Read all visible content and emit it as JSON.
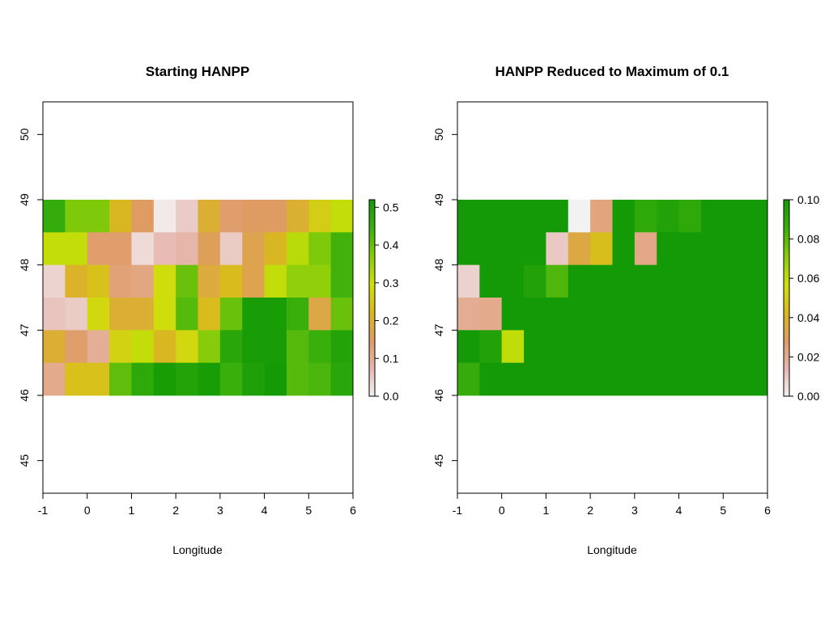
{
  "chart_data": [
    {
      "type": "heatmap",
      "title": "Starting HANPP",
      "xlabel": "Longitude",
      "ylabel": "",
      "xlim": [
        -1,
        6
      ],
      "ylim": [
        44.5,
        50.5
      ],
      "x_ticks": [
        "-1",
        "0",
        "1",
        "2",
        "3",
        "4",
        "5",
        "6"
      ],
      "y_ticks": [
        "45",
        "46",
        "47",
        "48",
        "49",
        "50"
      ],
      "cell_size": 0.5,
      "x_start": -1,
      "y_start": 46,
      "legend": {
        "range": [
          0,
          0.52
        ],
        "ticks": [
          "0.0",
          "0.1",
          "0.2",
          "0.3",
          "0.4",
          "0.5"
        ],
        "colors": [
          "#f2f2f2",
          "#e7b8b1",
          "#df9b63",
          "#d9b81f",
          "#cfe10a",
          "#86cc0a",
          "#3bb00c",
          "#149a06"
        ]
      },
      "grid_rows_top_to_bottom": [
        [
          0.46,
          0.38,
          0.38,
          0.22,
          0.15,
          0.01,
          0.05,
          0.2,
          0.14,
          0.15,
          0.15,
          0.2,
          0.26,
          0.31
        ],
        [
          0.31,
          0.31,
          0.14,
          0.14,
          0.03,
          0.07,
          0.08,
          0.16,
          0.05,
          0.17,
          0.22,
          0.32,
          0.38,
          0.44
        ],
        [
          0.04,
          0.21,
          0.24,
          0.13,
          0.12,
          0.29,
          0.4,
          0.19,
          0.23,
          0.17,
          0.31,
          0.36,
          0.36,
          0.44
        ],
        [
          0.06,
          0.05,
          0.28,
          0.2,
          0.2,
          0.29,
          0.42,
          0.23,
          0.4,
          0.51,
          0.51,
          0.45,
          0.18,
          0.4
        ],
        [
          0.2,
          0.14,
          0.1,
          0.27,
          0.31,
          0.22,
          0.28,
          0.37,
          0.48,
          0.51,
          0.51,
          0.42,
          0.45,
          0.49
        ],
        [
          0.11,
          0.24,
          0.24,
          0.41,
          0.47,
          0.51,
          0.49,
          0.51,
          0.45,
          0.5,
          0.52,
          0.42,
          0.43,
          0.48
        ]
      ]
    },
    {
      "type": "heatmap",
      "title": "HANPP Reduced to Maximum of 0.1",
      "xlabel": "Longitude",
      "ylabel": "",
      "xlim": [
        -1,
        6
      ],
      "ylim": [
        44.5,
        50.5
      ],
      "x_ticks": [
        "-1",
        "0",
        "1",
        "2",
        "3",
        "4",
        "5",
        "6"
      ],
      "y_ticks": [
        "45",
        "46",
        "47",
        "48",
        "49",
        "50"
      ],
      "cell_size": 0.5,
      "x_start": -1,
      "y_start": 46,
      "legend": {
        "range": [
          0,
          0.1
        ],
        "ticks": [
          "0.00",
          "0.02",
          "0.04",
          "0.06",
          "0.08",
          "0.10"
        ],
        "colors": [
          "#f2f2f2",
          "#e7b8b1",
          "#df9b63",
          "#d9b81f",
          "#cfe10a",
          "#86cc0a",
          "#3bb00c",
          "#149a06"
        ]
      },
      "grid_rows_top_to_bottom": [
        [
          0.1,
          0.1,
          0.1,
          0.1,
          0.1,
          0.0,
          0.024,
          0.1,
          0.09,
          0.095,
          0.09,
          0.1,
          0.1,
          0.1
        ],
        [
          0.1,
          0.1,
          0.1,
          0.1,
          0.01,
          0.035,
          0.045,
          0.1,
          0.022,
          0.1,
          0.1,
          0.1,
          0.1,
          0.1
        ],
        [
          0.008,
          0.1,
          0.1,
          0.095,
          0.082,
          0.1,
          0.1,
          0.1,
          0.1,
          0.1,
          0.1,
          0.1,
          0.1,
          0.1
        ],
        [
          0.02,
          0.021,
          0.1,
          0.1,
          0.1,
          0.1,
          0.1,
          0.1,
          0.1,
          0.1,
          0.1,
          0.1,
          0.1,
          0.1
        ],
        [
          0.1,
          0.095,
          0.06,
          0.1,
          0.1,
          0.1,
          0.1,
          0.1,
          0.1,
          0.1,
          0.1,
          0.1,
          0.1,
          0.1
        ],
        [
          0.088,
          0.1,
          0.1,
          0.1,
          0.1,
          0.1,
          0.1,
          0.1,
          0.1,
          0.1,
          0.1,
          0.1,
          0.1,
          0.1
        ]
      ]
    }
  ]
}
